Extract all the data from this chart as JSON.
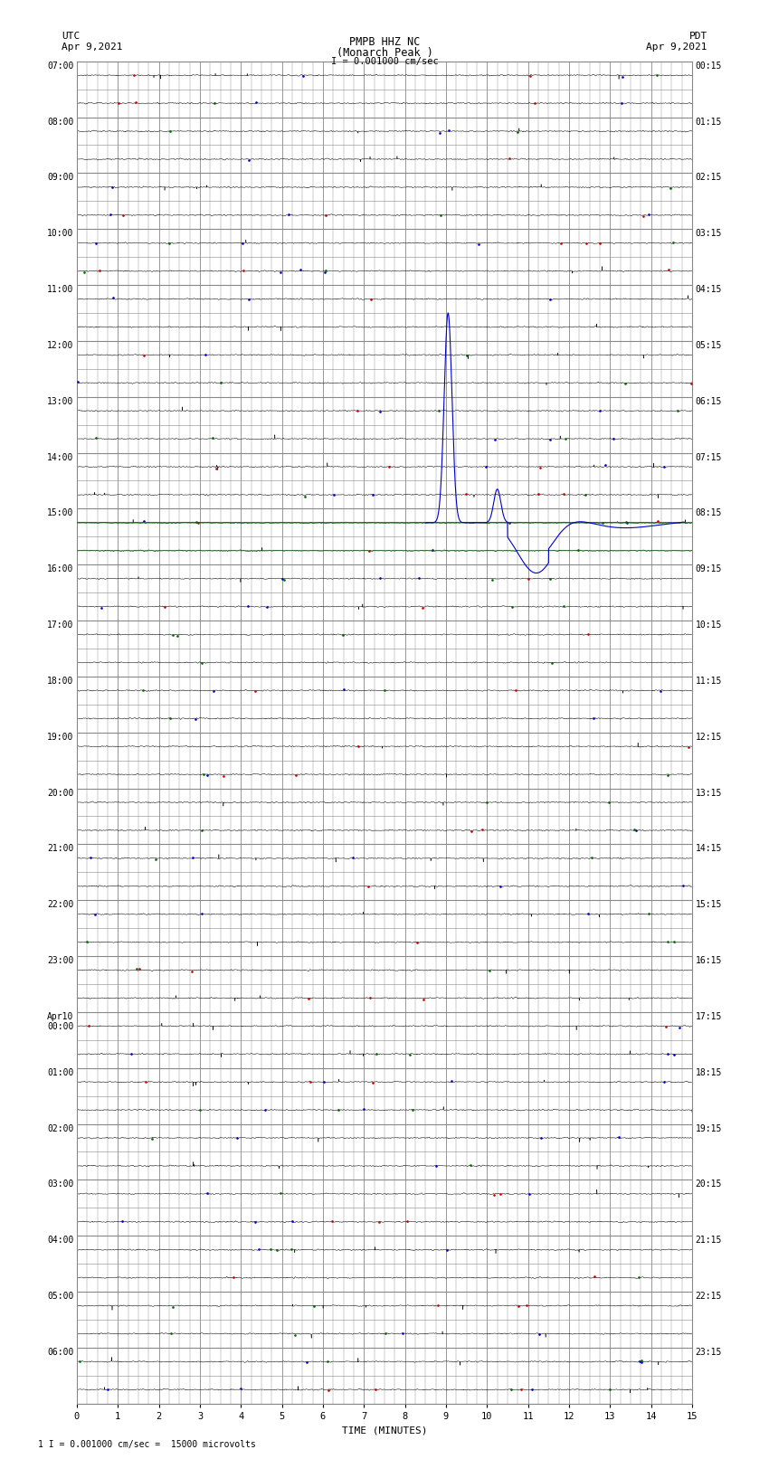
{
  "title_line1": "PMPB HHZ NC",
  "title_line2": "(Monarch Peak )",
  "scale_label": "I = 0.001000 cm/sec",
  "footer_label": "1 I = 0.001000 cm/sec =  15000 microvolts",
  "utc_label": "UTC",
  "utc_date": "Apr 9,2021",
  "pdt_label": "PDT",
  "pdt_date": "Apr 9,2021",
  "xlabel": "TIME (MINUTES)",
  "xlim": [
    0,
    15
  ],
  "xticks": [
    0,
    1,
    2,
    3,
    4,
    5,
    6,
    7,
    8,
    9,
    10,
    11,
    12,
    13,
    14,
    15
  ],
  "bg_color": "#ffffff",
  "trace_color": "#000000",
  "noise_color_red": "#cc0000",
  "noise_color_blue": "#0000cc",
  "noise_color_green": "#006600",
  "grid_color": "#888888",
  "num_hour_rows": 24,
  "subrows_per_hour": 2,
  "left_labels": [
    "07:00",
    "08:00",
    "09:00",
    "10:00",
    "11:00",
    "12:00",
    "13:00",
    "14:00",
    "15:00",
    "16:00",
    "17:00",
    "18:00",
    "19:00",
    "20:00",
    "21:00",
    "22:00",
    "23:00",
    "Apr10\n00:00",
    "01:00",
    "02:00",
    "03:00",
    "04:00",
    "05:00",
    "06:00"
  ],
  "right_labels": [
    "00:15",
    "01:15",
    "02:15",
    "03:15",
    "04:15",
    "05:15",
    "06:15",
    "07:15",
    "08:15",
    "09:15",
    "10:15",
    "11:15",
    "12:15",
    "13:15",
    "14:15",
    "15:15",
    "16:15",
    "17:15",
    "18:15",
    "19:15",
    "20:15",
    "21:15",
    "22:15",
    "23:15"
  ]
}
